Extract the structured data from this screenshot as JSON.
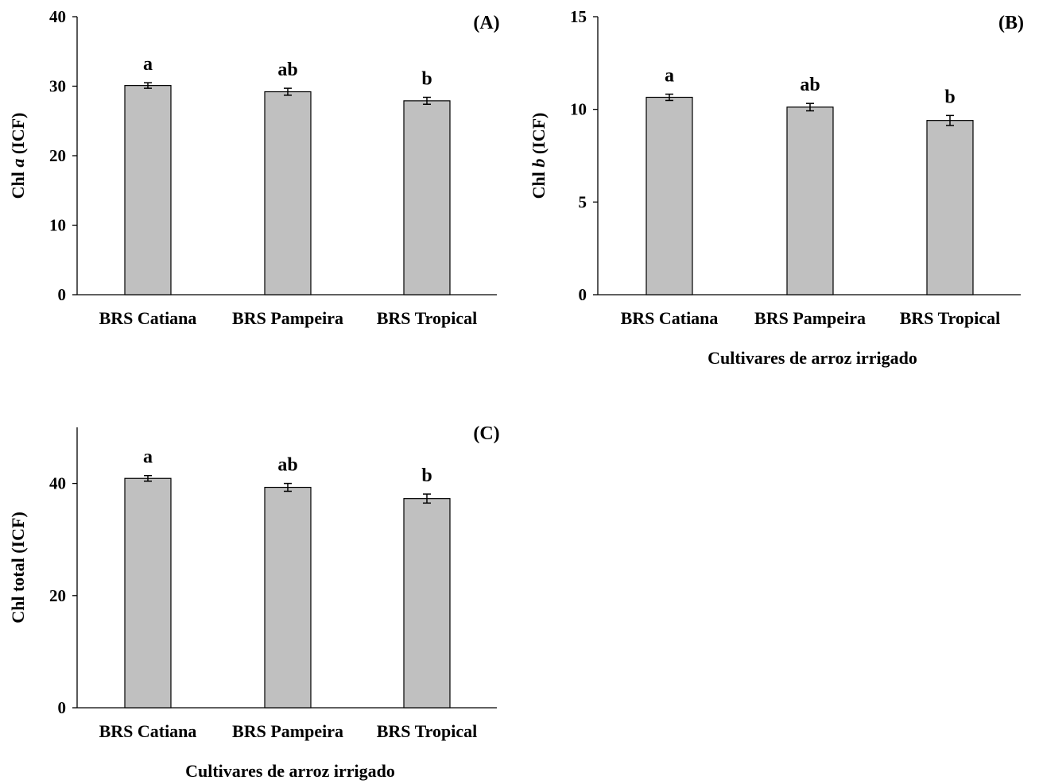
{
  "chart_data": [
    {
      "panel_label": "(A)",
      "type": "bar",
      "categories": [
        "BRS Catiana",
        "BRS Pampeira",
        "BRS Tropical"
      ],
      "values": [
        30.1,
        29.2,
        27.9
      ],
      "errors": [
        0.4,
        0.5,
        0.5
      ],
      "significance_letters": [
        "a",
        "ab",
        "b"
      ],
      "ylabel": {
        "pre": "Chl ",
        "italic": "a",
        "post": " (ICF)"
      },
      "xlabel": "",
      "ylim": [
        0,
        40
      ],
      "yticks": [
        0,
        10,
        20,
        30,
        40
      ],
      "bar_color": "#c0c0c0",
      "grid": false
    },
    {
      "panel_label": "(B)",
      "type": "bar",
      "categories": [
        "BRS Catiana",
        "BRS Pampeira",
        "BRS Tropical"
      ],
      "values": [
        10.65,
        10.12,
        9.4
      ],
      "errors": [
        0.17,
        0.2,
        0.27
      ],
      "significance_letters": [
        "a",
        "ab",
        "b"
      ],
      "ylabel": {
        "pre": "Chl ",
        "italic": "b",
        "post": " (ICF)"
      },
      "xlabel": "Cultivares de arroz irrigado",
      "ylim": [
        0,
        15
      ],
      "yticks": [
        0,
        5,
        10,
        15
      ],
      "bar_color": "#c0c0c0",
      "grid": false
    },
    {
      "panel_label": "(C)",
      "type": "bar",
      "categories": [
        "BRS Catiana",
        "BRS Pampeira",
        "BRS Tropical"
      ],
      "values": [
        40.9,
        39.3,
        37.3
      ],
      "errors": [
        0.5,
        0.7,
        0.8
      ],
      "significance_letters": [
        "a",
        "ab",
        "b"
      ],
      "ylabel": {
        "pre": "Chl total (ICF)",
        "italic": "",
        "post": ""
      },
      "xlabel": "Cultivares de arroz irrigado",
      "ylim": [
        0,
        50
      ],
      "yticks": [
        0,
        20,
        40
      ],
      "bar_color": "#c0c0c0",
      "grid": false
    }
  ]
}
